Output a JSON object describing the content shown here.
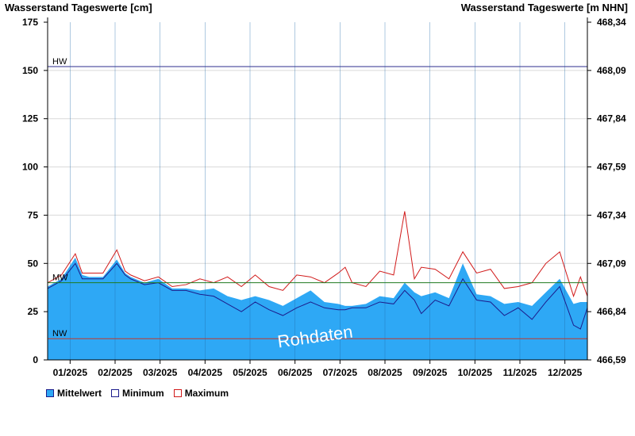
{
  "chart_data": {
    "type": "area",
    "ylabel_left": "Wasserstand Tageswerte [cm]",
    "ylabel_right": "Wasserstand Tageswerte [m NHN]",
    "ylim": [
      0,
      175
    ],
    "yticks_left": [
      "175",
      "150",
      "125",
      "100",
      "75",
      "50",
      "25",
      "0"
    ],
    "yticks_right": [
      "468,34",
      "468,09",
      "467,84",
      "467,59",
      "467,34",
      "467,09",
      "466,84",
      "466,59"
    ],
    "x_labels": [
      "01/2025",
      "02/2025",
      "03/2025",
      "04/2025",
      "05/2025",
      "06/2025",
      "07/2025",
      "08/2025",
      "09/2025",
      "10/2025",
      "11/2025",
      "12/2025"
    ],
    "grid": true,
    "watermark": "Rohdaten",
    "reference_lines": [
      {
        "label": "HW",
        "value": 152,
        "color": "#2e2e8c"
      },
      {
        "label": "MW",
        "value": 40,
        "color": "#1f7a1f"
      },
      {
        "label": "NW",
        "value": 11,
        "color": "#c0392b"
      }
    ],
    "x": [
      0,
      10,
      20,
      25,
      30,
      40,
      50,
      56,
      60,
      70,
      80,
      90,
      100,
      110,
      120,
      130,
      140,
      150,
      160,
      170,
      180,
      190,
      200,
      210,
      215,
      220,
      230,
      240,
      250,
      258,
      265,
      270,
      280,
      290,
      300,
      310,
      320,
      330,
      340,
      350,
      360,
      370,
      380,
      385,
      390
    ],
    "series": [
      {
        "name": "Mittelwert",
        "color": "#2ea8f5",
        "values": [
          38,
          42,
          53,
          44,
          43,
          43,
          52,
          45,
          43,
          40,
          42,
          37,
          37,
          36,
          37,
          33,
          31,
          33,
          31,
          28,
          32,
          36,
          30,
          29,
          28,
          28,
          29,
          33,
          32,
          40,
          35,
          33,
          35,
          32,
          50,
          34,
          33,
          29,
          30,
          28,
          35,
          42,
          29,
          30,
          30
        ]
      },
      {
        "name": "Minimum",
        "color": "#1c1c8c",
        "values": [
          37,
          41,
          50,
          42,
          42,
          42,
          50,
          44,
          42,
          39,
          40,
          36,
          36,
          34,
          33,
          29,
          25,
          30,
          26,
          23,
          27,
          30,
          27,
          26,
          26,
          27,
          27,
          30,
          29,
          36,
          31,
          24,
          31,
          28,
          42,
          31,
          30,
          23,
          27,
          21,
          30,
          38,
          18,
          16,
          27
        ]
      },
      {
        "name": "Maximum",
        "color": "#d11a1a",
        "values": [
          40,
          44,
          55,
          45,
          45,
          45,
          57,
          46,
          44,
          41,
          43,
          38,
          39,
          42,
          40,
          43,
          38,
          44,
          38,
          36,
          44,
          43,
          40,
          45,
          48,
          40,
          38,
          46,
          44,
          77,
          42,
          48,
          47,
          42,
          56,
          45,
          47,
          37,
          38,
          40,
          50,
          56,
          33,
          43,
          33
        ]
      }
    ]
  }
}
